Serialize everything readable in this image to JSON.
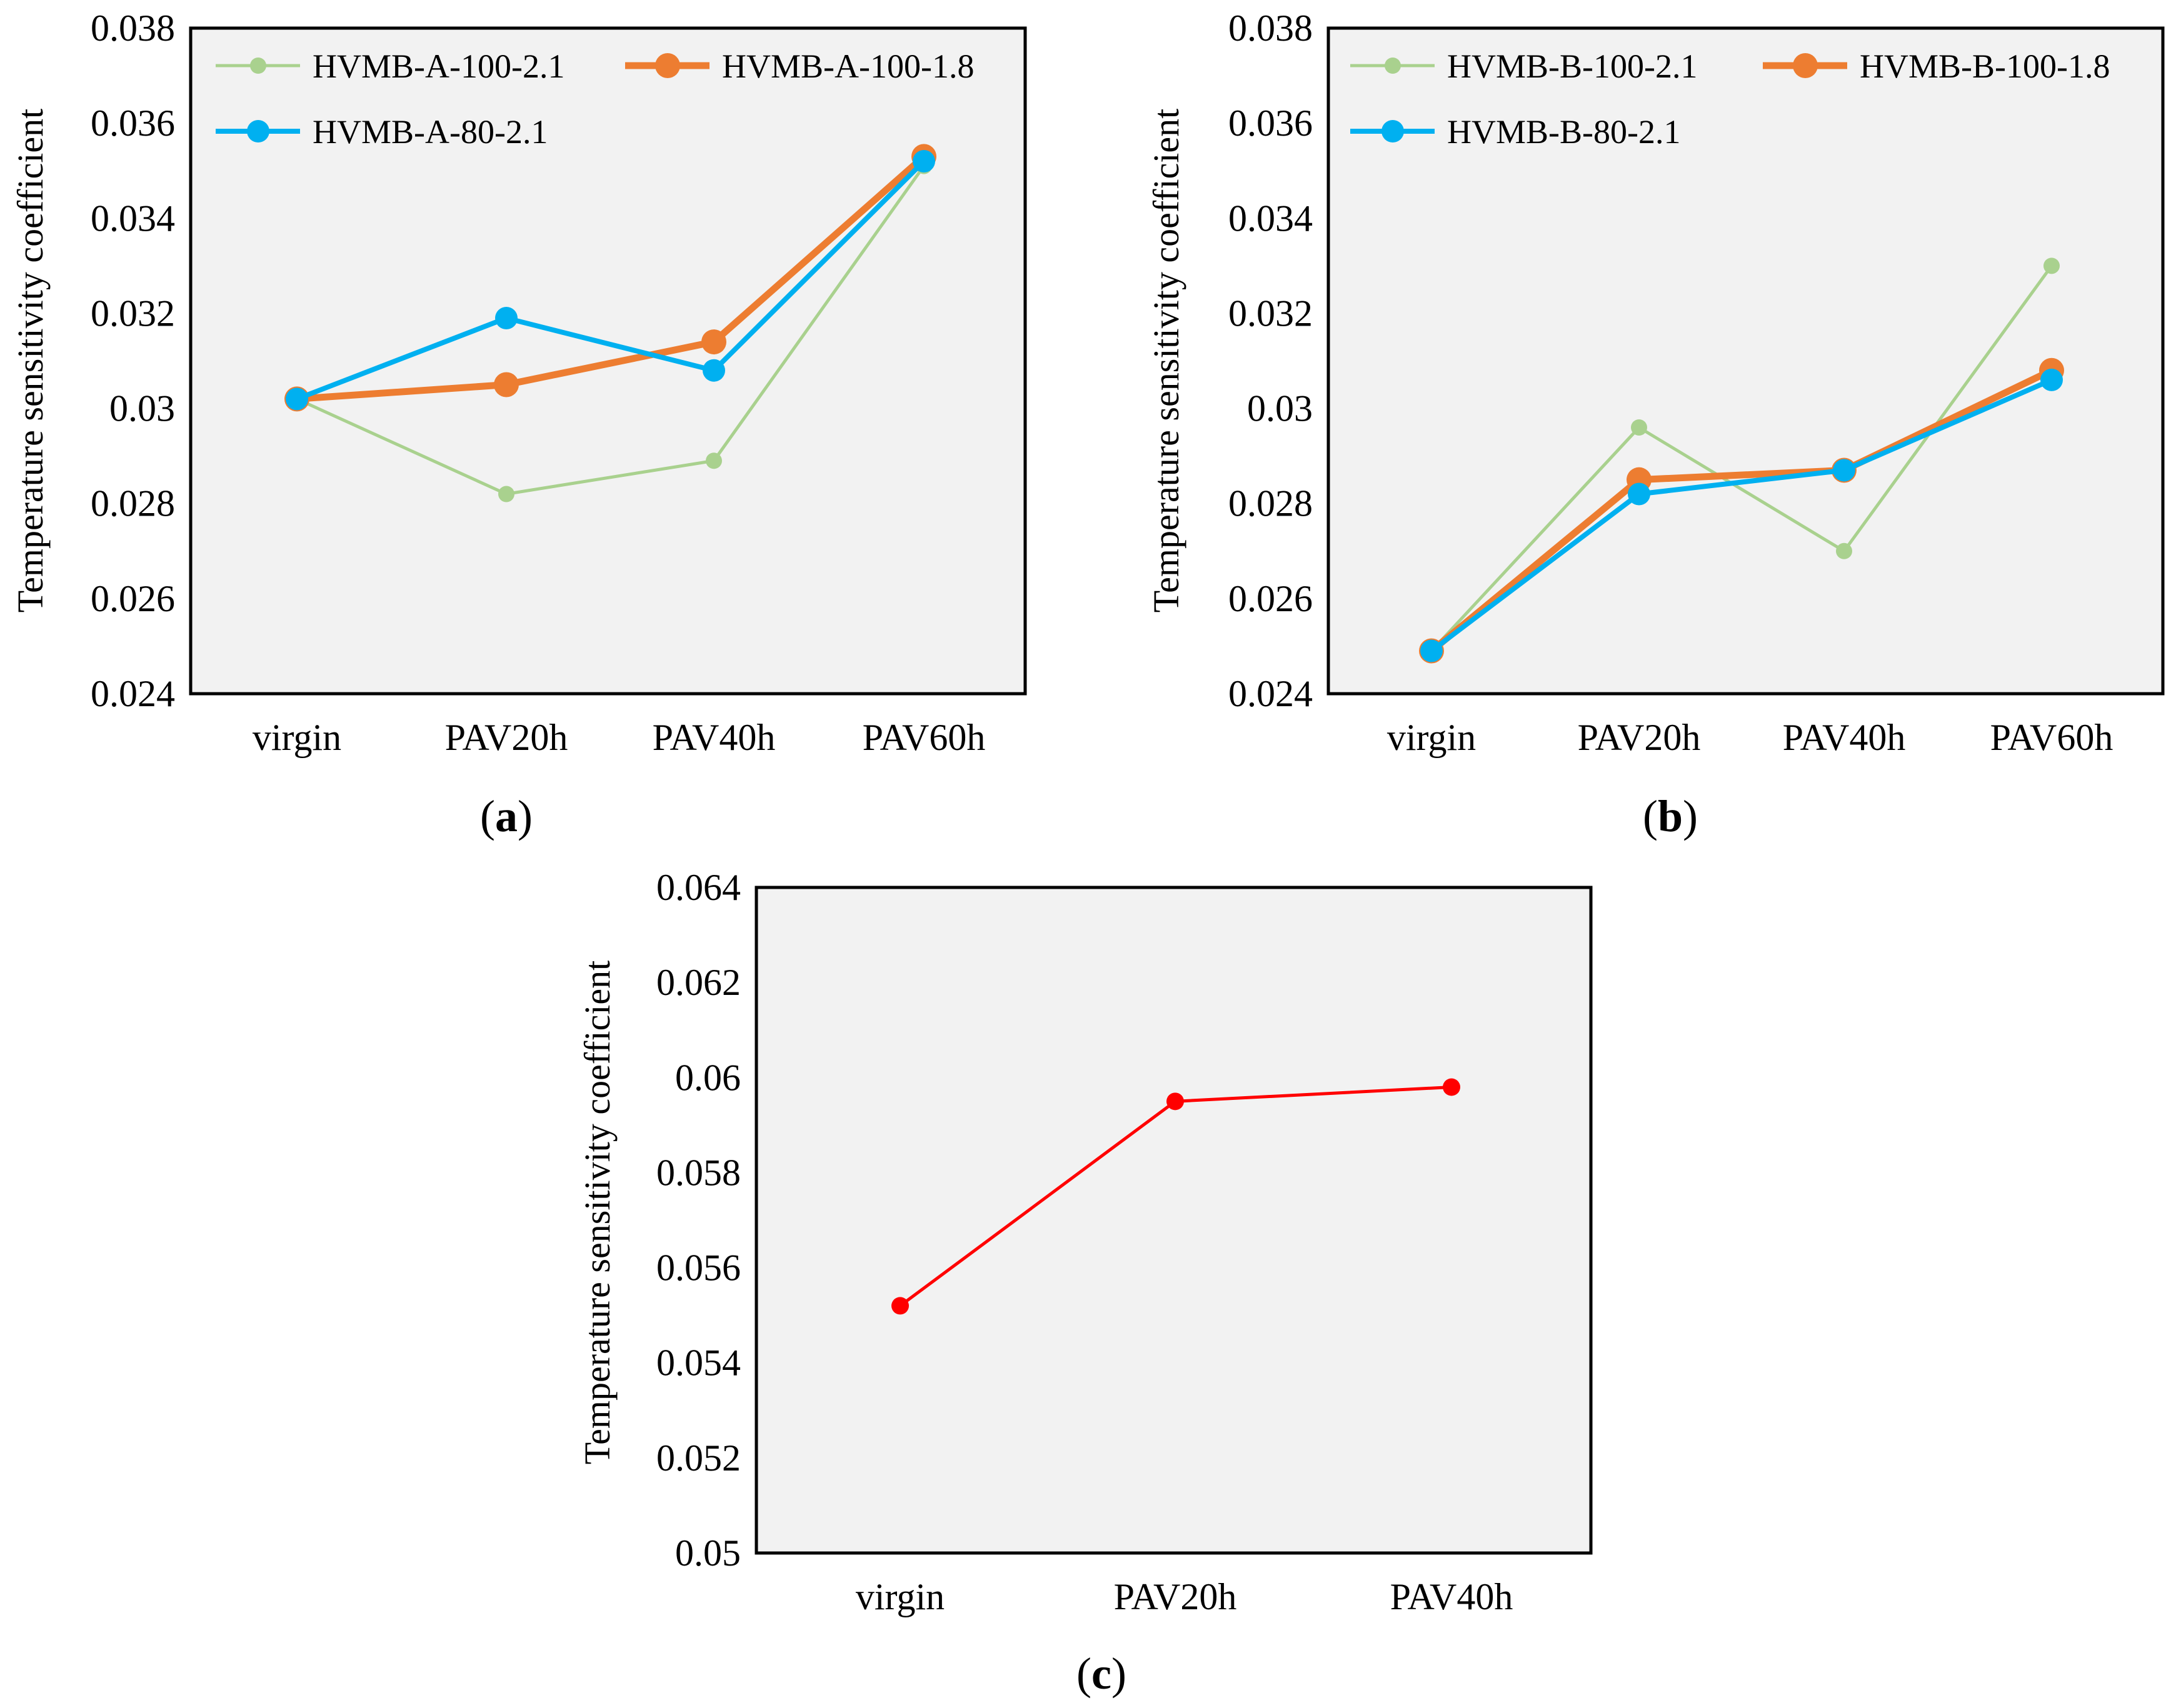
{
  "panels": [
    {
      "id": "a",
      "caption": {
        "open": "(",
        "letter": "a",
        "close": ")"
      }
    },
    {
      "id": "b",
      "caption": {
        "open": "(",
        "letter": "b",
        "close": ")"
      }
    },
    {
      "id": "c",
      "caption": {
        "open": "(",
        "letter": "c",
        "close": ")"
      }
    }
  ],
  "chart_data": [
    {
      "panel": "a",
      "type": "line",
      "categories": [
        "virgin",
        "PAV20h",
        "PAV40h",
        "PAV60h"
      ],
      "ylabel": "Temperature sensitivity  coefficient",
      "xlabel": "",
      "ylim": [
        0.024,
        0.038
      ],
      "yticks": [
        0.024,
        0.026,
        0.028,
        0.03,
        0.032,
        0.034,
        0.036,
        0.038
      ],
      "ytick_labels": [
        "0.024",
        "0.026",
        "0.028",
        "0.03",
        "0.032",
        "0.034",
        "0.036",
        "0.038"
      ],
      "grid": false,
      "legend": "top-left",
      "series": [
        {
          "name": "HVMB-A-100-2.1",
          "color": "#a9d18e",
          "values": [
            0.0302,
            0.0282,
            0.0289,
            0.0351
          ]
        },
        {
          "name": "HVMB-A-100-1.8",
          "color": "#ed7d31",
          "values": [
            0.0302,
            0.0305,
            0.0314,
            0.0353
          ]
        },
        {
          "name": "HVMB-A-80-2.1",
          "color": "#00b0f0",
          "values": [
            0.0302,
            0.0319,
            0.0308,
            0.0352
          ]
        }
      ]
    },
    {
      "panel": "b",
      "type": "line",
      "categories": [
        "virgin",
        "PAV20h",
        "PAV40h",
        "PAV60h"
      ],
      "ylabel": "Temperature sensitivity  coefficient",
      "xlabel": "",
      "ylim": [
        0.024,
        0.038
      ],
      "yticks": [
        0.024,
        0.026,
        0.028,
        0.03,
        0.032,
        0.034,
        0.036,
        0.038
      ],
      "ytick_labels": [
        "0.024",
        "0.026",
        "0.028",
        "0.03",
        "0.032",
        "0.034",
        "0.036",
        "0.038"
      ],
      "grid": false,
      "legend": "top-left",
      "series": [
        {
          "name": "HVMB-B-100-2.1",
          "color": "#a9d18e",
          "values": [
            0.0249,
            0.0296,
            0.027,
            0.033
          ]
        },
        {
          "name": "HVMB-B-100-1.8",
          "color": "#ed7d31",
          "values": [
            0.0249,
            0.0285,
            0.0287,
            0.0308
          ]
        },
        {
          "name": "HVMB-B-80-2.1",
          "color": "#00b0f0",
          "values": [
            0.0249,
            0.0282,
            0.0287,
            0.0306
          ]
        }
      ]
    },
    {
      "panel": "c",
      "type": "line",
      "categories": [
        "virgin",
        "PAV20h",
        "PAV40h"
      ],
      "ylabel": "Temperature sensitivity  coefficient",
      "xlabel": "",
      "ylim": [
        0.05,
        0.064
      ],
      "yticks": [
        0.05,
        0.052,
        0.054,
        0.056,
        0.058,
        0.06,
        0.062,
        0.064
      ],
      "ytick_labels": [
        "0.05",
        "0.052",
        "0.054",
        "0.056",
        "0.058",
        "0.06",
        "0.062",
        "0.064"
      ],
      "grid": false,
      "legend": "none",
      "series": [
        {
          "name": "",
          "color": "#ff0000",
          "values": [
            0.0552,
            0.0595,
            0.0598
          ]
        }
      ]
    }
  ]
}
